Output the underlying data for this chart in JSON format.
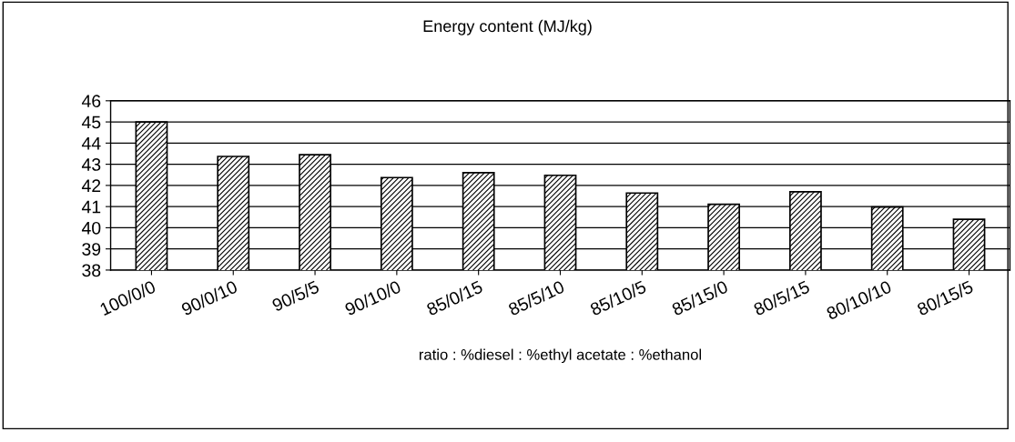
{
  "chart_data": {
    "type": "bar",
    "title": "Energy content (MJ/kg)",
    "xlabel": "ratio : %diesel : %ethyl acetate : %ethanol",
    "categories": [
      "100/0/0",
      "90/0/10",
      "90/5/5",
      "90/10/0",
      "85/0/15",
      "85/5/10",
      "85/10/5",
      "85/15/0",
      "80/5/15",
      "80/10/10",
      "80/15/5"
    ],
    "values": [
      45.0,
      43.37,
      43.45,
      42.37,
      42.6,
      42.48,
      41.64,
      41.11,
      41.7,
      40.98,
      40.4
    ],
    "color": "#000000",
    "ylim": [
      38,
      46
    ],
    "yticks": [
      38,
      39,
      40,
      41,
      42,
      43,
      44,
      45,
      46
    ],
    "grid": "y",
    "legend": false
  }
}
